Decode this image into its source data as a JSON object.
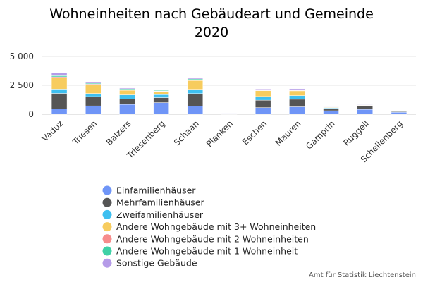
{
  "chart_data": {
    "type": "bar",
    "stacked": true,
    "title": "Wohneinheiten nach Gebäudeart und Gemeinde",
    "subtitle": "2020",
    "categories": [
      "Vaduz",
      "Triesen",
      "Balzers",
      "Triesenberg",
      "Schaan",
      "Planken",
      "Eschen",
      "Mauren",
      "Gamprin",
      "Ruggell",
      "Schellenberg"
    ],
    "ylim": [
      0,
      5000
    ],
    "yticks": [
      0,
      2500,
      5000
    ],
    "ytick_labels": [
      "0",
      "2 500",
      "5 000"
    ],
    "grid": true,
    "legend_position": "bottom",
    "series": [
      {
        "name": "Einfamilienhäuser",
        "color": "#6f95f7",
        "values": [
          450,
          720,
          850,
          1000,
          700,
          80,
          570,
          640,
          300,
          420,
          170
        ]
      },
      {
        "name": "Mehrfamilienhäuser",
        "color": "#555555",
        "values": [
          1350,
          800,
          460,
          430,
          1080,
          10,
          640,
          650,
          190,
          270,
          60
        ]
      },
      {
        "name": "Zweifamilienhäuser",
        "color": "#3ebff0",
        "values": [
          370,
          270,
          360,
          260,
          370,
          10,
          320,
          320,
          60,
          60,
          30
        ]
      },
      {
        "name": "Andere Wohngebäude mit 3+ Wohneinheiten",
        "color": "#f7cc5e",
        "values": [
          980,
          750,
          400,
          280,
          760,
          0,
          500,
          410,
          60,
          50,
          0
        ]
      },
      {
        "name": "Andere Wohngebäude mit 2 Wohneinheiten",
        "color": "#f78c8c",
        "values": [
          80,
          60,
          40,
          30,
          60,
          0,
          40,
          40,
          10,
          10,
          5
        ]
      },
      {
        "name": "Andere Wohngebäude mit 1 Wohneinheit",
        "color": "#3fd1a6",
        "values": [
          100,
          80,
          80,
          60,
          80,
          5,
          60,
          60,
          20,
          20,
          10
        ]
      },
      {
        "name": "Sonstige Gebäude",
        "color": "#b59be8",
        "values": [
          250,
          100,
          70,
          60,
          100,
          5,
          60,
          80,
          20,
          20,
          10
        ]
      }
    ],
    "credit": "Amt für Statistik Liechtenstein"
  }
}
